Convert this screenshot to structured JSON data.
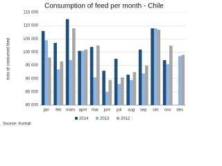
{
  "chart_data": {
    "type": "bar",
    "title": "Consumption of feed per month - Chile",
    "y_label": "tons of consumed feed",
    "source": "Source: Kontali",
    "categories": [
      "jan",
      "feb",
      "mars",
      "april",
      "mai",
      "juni",
      "juli",
      "aug",
      "sep",
      "okt",
      "nov",
      "des"
    ],
    "series": [
      {
        "name": "2014",
        "color": "#1f4e79",
        "values": [
          108000,
          103500,
          112500,
          100500,
          102000,
          93000,
          97500,
          91500,
          101000,
          109000,
          97000,
          null
        ]
      },
      {
        "name": "2013",
        "color": "#8db4e2",
        "values": [
          104500,
          93500,
          97000,
          100500,
          90500,
          85000,
          88000,
          89500,
          92000,
          109000,
          95500,
          98500
        ]
      },
      {
        "name": "2012",
        "color": "#a6a6a6",
        "values": [
          98000,
          96500,
          109000,
          101000,
          102500,
          89500,
          90500,
          92500,
          95000,
          108500,
          102500,
          99000
        ]
      }
    ],
    "ylim": [
      80000,
      115000
    ],
    "yticks": [
      {
        "value": 80000,
        "label": "80 000"
      },
      {
        "value": 85000,
        "label": "85 000"
      },
      {
        "value": 90000,
        "label": "90 000"
      },
      {
        "value": 95000,
        "label": "95 000"
      },
      {
        "value": 100000,
        "label": "100 000"
      },
      {
        "value": 105000,
        "label": "105 000"
      },
      {
        "value": 110000,
        "label": "110 000"
      },
      {
        "value": 115000,
        "label": "115 000"
      }
    ],
    "grid": true
  }
}
